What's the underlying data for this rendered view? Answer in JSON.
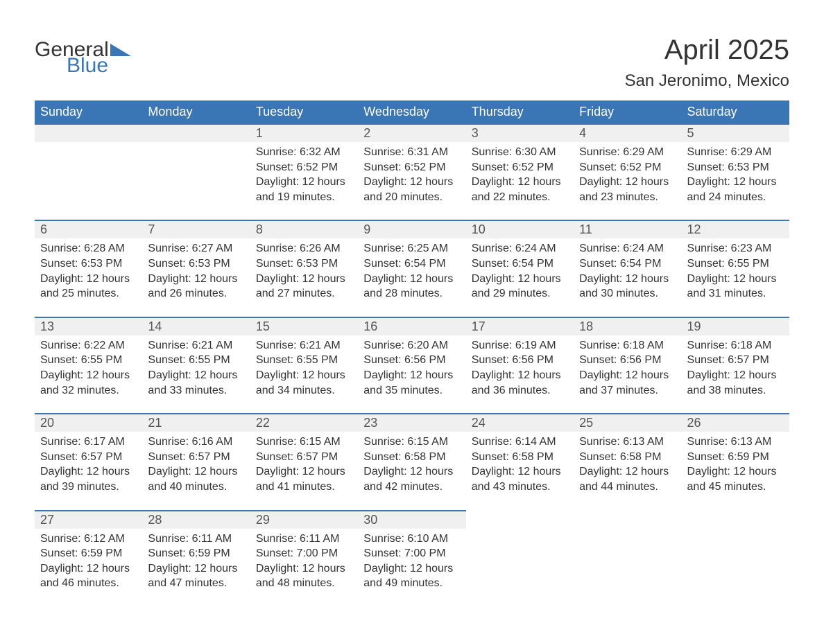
{
  "logo": {
    "word1": "General",
    "word2": "Blue"
  },
  "title": "April 2025",
  "location": "San Jeronimo, Mexico",
  "theme": {
    "header_bg": "#3a75b6",
    "header_text": "#ffffff",
    "daynum_bg": "#f0f0f0",
    "border_top": "#3a75b6",
    "body_bg": "#ffffff",
    "text": "#333333",
    "title_fontsize": 40,
    "location_fontsize": 24,
    "weekday_fontsize": 18,
    "daynum_fontsize": 18,
    "cell_fontsize": 16
  },
  "weekdays": [
    "Sunday",
    "Monday",
    "Tuesday",
    "Wednesday",
    "Thursday",
    "Friday",
    "Saturday"
  ],
  "weeks": [
    {
      "days": [
        null,
        null,
        {
          "n": "1",
          "sunrise": "6:32 AM",
          "sunset": "6:52 PM",
          "daylight": "12 hours and 19 minutes."
        },
        {
          "n": "2",
          "sunrise": "6:31 AM",
          "sunset": "6:52 PM",
          "daylight": "12 hours and 20 minutes."
        },
        {
          "n": "3",
          "sunrise": "6:30 AM",
          "sunset": "6:52 PM",
          "daylight": "12 hours and 22 minutes."
        },
        {
          "n": "4",
          "sunrise": "6:29 AM",
          "sunset": "6:52 PM",
          "daylight": "12 hours and 23 minutes."
        },
        {
          "n": "5",
          "sunrise": "6:29 AM",
          "sunset": "6:53 PM",
          "daylight": "12 hours and 24 minutes."
        }
      ]
    },
    {
      "days": [
        {
          "n": "6",
          "sunrise": "6:28 AM",
          "sunset": "6:53 PM",
          "daylight": "12 hours and 25 minutes."
        },
        {
          "n": "7",
          "sunrise": "6:27 AM",
          "sunset": "6:53 PM",
          "daylight": "12 hours and 26 minutes."
        },
        {
          "n": "8",
          "sunrise": "6:26 AM",
          "sunset": "6:53 PM",
          "daylight": "12 hours and 27 minutes."
        },
        {
          "n": "9",
          "sunrise": "6:25 AM",
          "sunset": "6:54 PM",
          "daylight": "12 hours and 28 minutes."
        },
        {
          "n": "10",
          "sunrise": "6:24 AM",
          "sunset": "6:54 PM",
          "daylight": "12 hours and 29 minutes."
        },
        {
          "n": "11",
          "sunrise": "6:24 AM",
          "sunset": "6:54 PM",
          "daylight": "12 hours and 30 minutes."
        },
        {
          "n": "12",
          "sunrise": "6:23 AM",
          "sunset": "6:55 PM",
          "daylight": "12 hours and 31 minutes."
        }
      ]
    },
    {
      "days": [
        {
          "n": "13",
          "sunrise": "6:22 AM",
          "sunset": "6:55 PM",
          "daylight": "12 hours and 32 minutes."
        },
        {
          "n": "14",
          "sunrise": "6:21 AM",
          "sunset": "6:55 PM",
          "daylight": "12 hours and 33 minutes."
        },
        {
          "n": "15",
          "sunrise": "6:21 AM",
          "sunset": "6:55 PM",
          "daylight": "12 hours and 34 minutes."
        },
        {
          "n": "16",
          "sunrise": "6:20 AM",
          "sunset": "6:56 PM",
          "daylight": "12 hours and 35 minutes."
        },
        {
          "n": "17",
          "sunrise": "6:19 AM",
          "sunset": "6:56 PM",
          "daylight": "12 hours and 36 minutes."
        },
        {
          "n": "18",
          "sunrise": "6:18 AM",
          "sunset": "6:56 PM",
          "daylight": "12 hours and 37 minutes."
        },
        {
          "n": "19",
          "sunrise": "6:18 AM",
          "sunset": "6:57 PM",
          "daylight": "12 hours and 38 minutes."
        }
      ]
    },
    {
      "days": [
        {
          "n": "20",
          "sunrise": "6:17 AM",
          "sunset": "6:57 PM",
          "daylight": "12 hours and 39 minutes."
        },
        {
          "n": "21",
          "sunrise": "6:16 AM",
          "sunset": "6:57 PM",
          "daylight": "12 hours and 40 minutes."
        },
        {
          "n": "22",
          "sunrise": "6:15 AM",
          "sunset": "6:57 PM",
          "daylight": "12 hours and 41 minutes."
        },
        {
          "n": "23",
          "sunrise": "6:15 AM",
          "sunset": "6:58 PM",
          "daylight": "12 hours and 42 minutes."
        },
        {
          "n": "24",
          "sunrise": "6:14 AM",
          "sunset": "6:58 PM",
          "daylight": "12 hours and 43 minutes."
        },
        {
          "n": "25",
          "sunrise": "6:13 AM",
          "sunset": "6:58 PM",
          "daylight": "12 hours and 44 minutes."
        },
        {
          "n": "26",
          "sunrise": "6:13 AM",
          "sunset": "6:59 PM",
          "daylight": "12 hours and 45 minutes."
        }
      ]
    },
    {
      "days": [
        {
          "n": "27",
          "sunrise": "6:12 AM",
          "sunset": "6:59 PM",
          "daylight": "12 hours and 46 minutes."
        },
        {
          "n": "28",
          "sunrise": "6:11 AM",
          "sunset": "6:59 PM",
          "daylight": "12 hours and 47 minutes."
        },
        {
          "n": "29",
          "sunrise": "6:11 AM",
          "sunset": "7:00 PM",
          "daylight": "12 hours and 48 minutes."
        },
        {
          "n": "30",
          "sunrise": "6:10 AM",
          "sunset": "7:00 PM",
          "daylight": "12 hours and 49 minutes."
        },
        null,
        null,
        null
      ]
    }
  ],
  "labels": {
    "sunrise": "Sunrise: ",
    "sunset": "Sunset: ",
    "daylight": "Daylight: "
  }
}
